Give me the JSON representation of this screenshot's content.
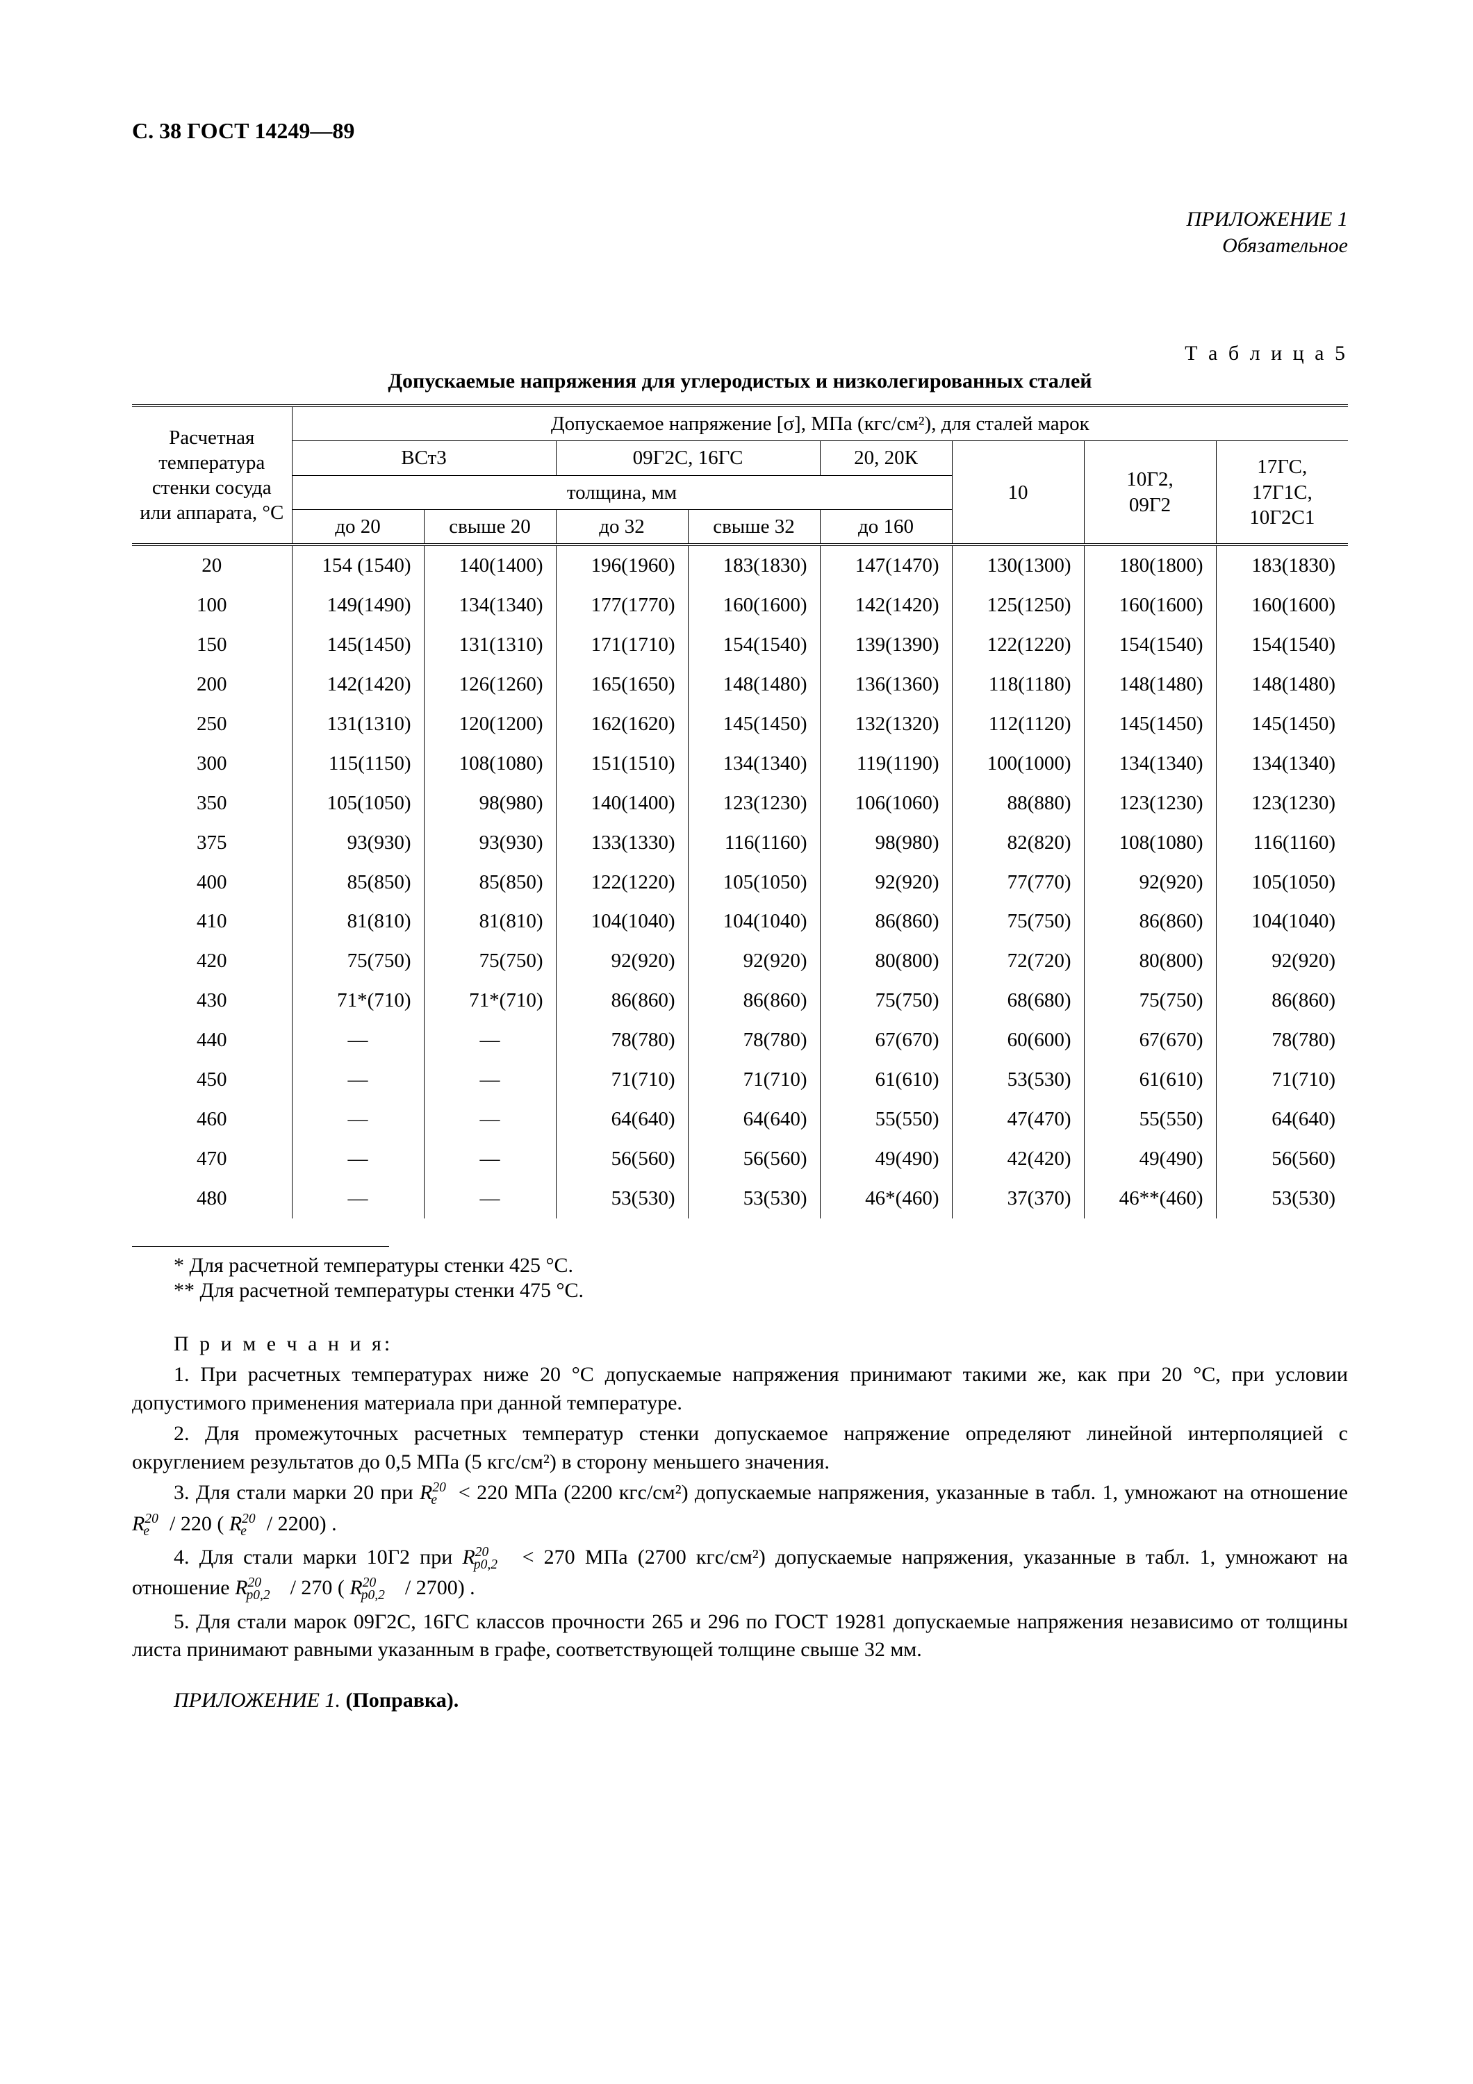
{
  "header": "С. 38 ГОСТ 14249—89",
  "appendix": {
    "line1": "ПРИЛОЖЕНИЕ 1",
    "line2": "Обязательное"
  },
  "table": {
    "label": "Т а б л и ц а   5",
    "caption": "Допускаемые напряжения для углеродистых и низколегированных сталей",
    "header": {
      "row_label": "Расчетная температура стенки сосуда или аппарата, °С",
      "main": "Допускаемое напряжение [σ], МПа (кгс/см²), для сталей марок",
      "g1": "ВСт3",
      "g2": "09Г2С, 16ГС",
      "g3": "20, 20К",
      "g4": "10",
      "g5": "10Г2,\n09Г2",
      "g6": "17ГС,\n17Г1С,\n10Г2С1",
      "thick": "толщина, мм",
      "s1": "до 20",
      "s2": "свыше 20",
      "s3": "до 32",
      "s4": "свыше 32",
      "s5": "до 160"
    },
    "rows": [
      {
        "t": "20",
        "c": [
          "154 (1540)",
          "140(1400)",
          "196(1960)",
          "183(1830)",
          "147(1470)",
          "130(1300)",
          "180(1800)",
          "183(1830)"
        ]
      },
      {
        "t": "100",
        "c": [
          "149(1490)",
          "134(1340)",
          "177(1770)",
          "160(1600)",
          "142(1420)",
          "125(1250)",
          "160(1600)",
          "160(1600)"
        ]
      },
      {
        "t": "150",
        "c": [
          "145(1450)",
          "131(1310)",
          "171(1710)",
          "154(1540)",
          "139(1390)",
          "122(1220)",
          "154(1540)",
          "154(1540)"
        ]
      },
      {
        "t": "200",
        "c": [
          "142(1420)",
          "126(1260)",
          "165(1650)",
          "148(1480)",
          "136(1360)",
          "118(1180)",
          "148(1480)",
          "148(1480)"
        ]
      },
      {
        "t": "250",
        "c": [
          "131(1310)",
          "120(1200)",
          "162(1620)",
          "145(1450)",
          "132(1320)",
          "112(1120)",
          "145(1450)",
          "145(1450)"
        ]
      },
      {
        "t": "300",
        "c": [
          "115(1150)",
          "108(1080)",
          "151(1510)",
          "134(1340)",
          "119(1190)",
          "100(1000)",
          "134(1340)",
          "134(1340)"
        ]
      },
      {
        "t": "350",
        "c": [
          "105(1050)",
          "98(980)",
          "140(1400)",
          "123(1230)",
          "106(1060)",
          "88(880)",
          "123(1230)",
          "123(1230)"
        ]
      },
      {
        "t": "375",
        "c": [
          "93(930)",
          "93(930)",
          "133(1330)",
          "116(1160)",
          "98(980)",
          "82(820)",
          "108(1080)",
          "116(1160)"
        ]
      },
      {
        "t": "400",
        "c": [
          "85(850)",
          "85(850)",
          "122(1220)",
          "105(1050)",
          "92(920)",
          "77(770)",
          "92(920)",
          "105(1050)"
        ]
      },
      {
        "t": "410",
        "c": [
          "81(810)",
          "81(810)",
          "104(1040)",
          "104(1040)",
          "86(860)",
          "75(750)",
          "86(860)",
          "104(1040)"
        ]
      },
      {
        "t": "420",
        "c": [
          "75(750)",
          "75(750)",
          "92(920)",
          "92(920)",
          "80(800)",
          "72(720)",
          "80(800)",
          "92(920)"
        ]
      },
      {
        "t": "430",
        "c": [
          "71*(710)",
          "71*(710)",
          "86(860)",
          "86(860)",
          "75(750)",
          "68(680)",
          "75(750)",
          "86(860)"
        ]
      },
      {
        "t": "440",
        "c": [
          "—",
          "—",
          "78(780)",
          "78(780)",
          "67(670)",
          "60(600)",
          "67(670)",
          "78(780)"
        ]
      },
      {
        "t": "450",
        "c": [
          "—",
          "—",
          "71(710)",
          "71(710)",
          "61(610)",
          "53(530)",
          "61(610)",
          "71(710)"
        ]
      },
      {
        "t": "460",
        "c": [
          "—",
          "—",
          "64(640)",
          "64(640)",
          "55(550)",
          "47(470)",
          "55(550)",
          "64(640)"
        ]
      },
      {
        "t": "470",
        "c": [
          "—",
          "—",
          "56(560)",
          "56(560)",
          "49(490)",
          "42(420)",
          "49(490)",
          "56(560)"
        ]
      },
      {
        "t": "480",
        "c": [
          "—",
          "—",
          "53(530)",
          "53(530)",
          "46*(460)",
          "37(370)",
          "46**(460)",
          "53(530)"
        ]
      }
    ]
  },
  "footnotes": {
    "f1": "* Для расчетной температуры стенки 425 °С.",
    "f2": "** Для расчетной температуры стенки 475 °С."
  },
  "notes": {
    "title": "П р и м е ч а н и я:",
    "n1": "1. При расчетных температурах ниже 20 °С допускаемые напряжения принимают такими же, как при 20 °С, при условии допустимого применения материала при данной температуре.",
    "n2": "2. Для промежуточных расчетных температур стенки допускаемое напряжение определяют линейной интерполяцией с округлением результатов до 0,5 МПа (5 кгс/см²) в сторону меньшего значения.",
    "n3a": "3. Для стали марки 20 при ",
    "n3b": " < 220 МПа (2200 кгс/см²) допускаемые напряжения, указанные в табл. 1, умножают на отношение ",
    "n3c": " / 220 (",
    "n3d": " / 2200) .",
    "n4a": "4. Для стали марки 10Г2 при ",
    "n4b": " < 270 МПа (2700 кгс/см²) допускаемые напряжения, указанные в табл. 1, умножают на отношение ",
    "n4c": " / 270 (",
    "n4d": " / 2700) .",
    "n5": "5. Для стали марок 09Г2С, 16ГС классов прочности 265 и 296 по ГОСТ 19281 допускаемые напряжения независимо от толщины листа принимают равными указанным в графе, соответствующей толщине свыше 32 мм."
  },
  "correction": {
    "it": "ПРИЛОЖЕНИЕ 1.",
    "bold": " (Поправка)."
  }
}
